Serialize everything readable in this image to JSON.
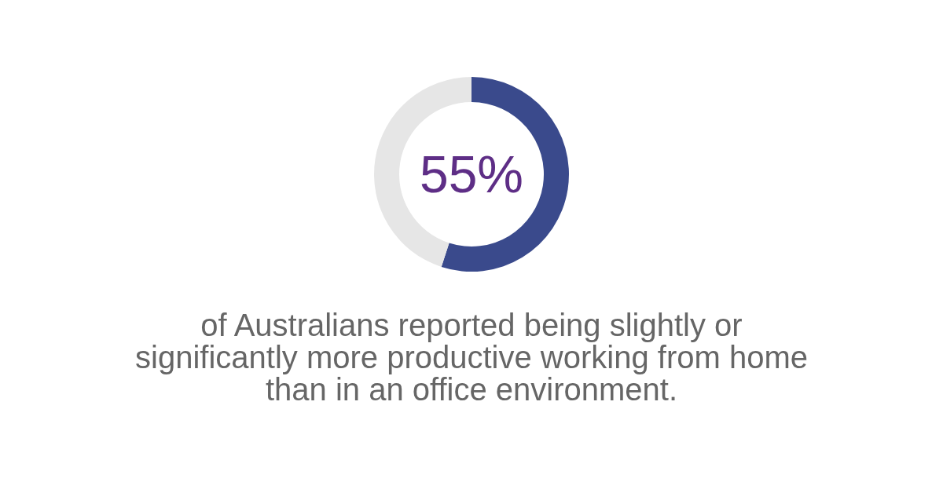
{
  "chart_data": {
    "type": "donut",
    "categories": [
      null,
      null
    ],
    "values": [
      55,
      45
    ],
    "colors": [
      "#3a4a8c",
      "#e6e6e6"
    ],
    "value_labels": [
      "55%",
      null
    ],
    "annotations": [
      "of Australians reported being slightly or significantly more productive working from home than in an office environment."
    ]
  }
}
